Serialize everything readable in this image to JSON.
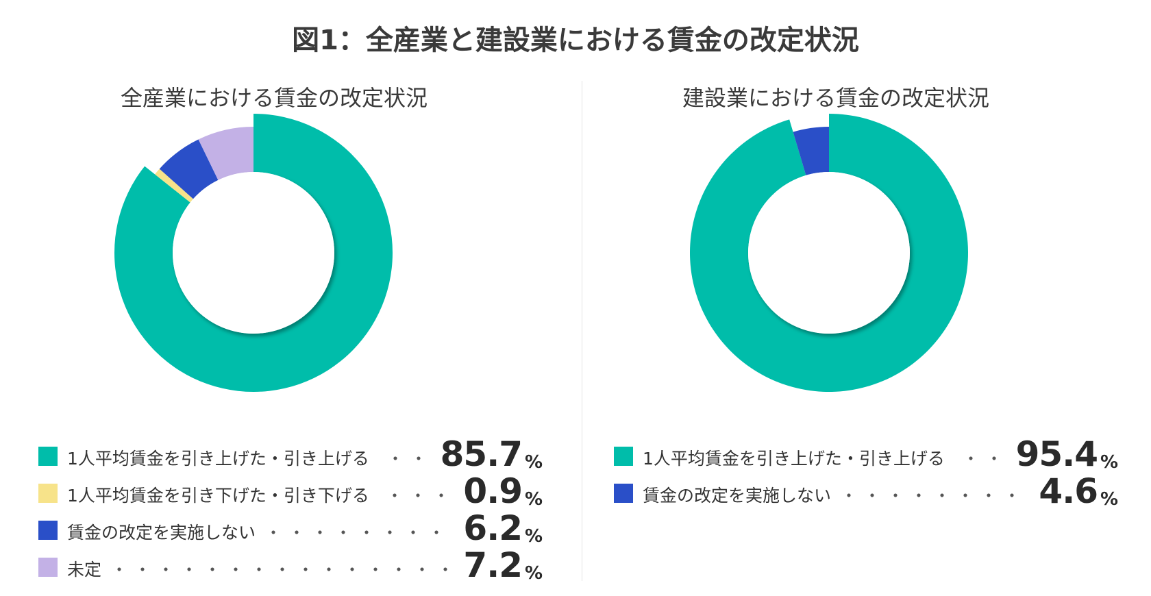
{
  "title": "図1：全産業と建設業における賃金の改定状況",
  "colors": {
    "raise": "#00BDAA",
    "lower": "#F7E38A",
    "no_change": "#2A4FC8",
    "undecided": "#C3B1E6"
  },
  "chart_data": [
    {
      "type": "pie",
      "title": "全産業における賃金の改定状況",
      "donut": true,
      "legend_position": "bottom",
      "slices": [
        {
          "label": "1人平均賃金を引き上げた・引き上げる",
          "value": 85.7,
          "value_text": "85.7",
          "unit": "%",
          "color": "#00BDAA"
        },
        {
          "label": "1人平均賃金を引き下げた・引き下げる",
          "value": 0.9,
          "value_text": "0.9",
          "unit": "%",
          "color": "#F7E38A"
        },
        {
          "label": "賃金の改定を実施しない",
          "value": 6.2,
          "value_text": "6.2",
          "unit": "%",
          "color": "#2A4FC8"
        },
        {
          "label": "未定",
          "value": 7.2,
          "value_text": "7.2",
          "unit": "%",
          "color": "#C3B1E6"
        }
      ]
    },
    {
      "type": "pie",
      "title": "建設業における賃金の改定状況",
      "donut": true,
      "legend_position": "bottom",
      "slices": [
        {
          "label": "1人平均賃金を引き上げた・引き上げる",
          "value": 95.4,
          "value_text": "95.4",
          "unit": "%",
          "color": "#00BDAA"
        },
        {
          "label": "賃金の改定を実施しない",
          "value": 4.6,
          "value_text": "4.6",
          "unit": "%",
          "color": "#2A4FC8"
        }
      ]
    }
  ]
}
